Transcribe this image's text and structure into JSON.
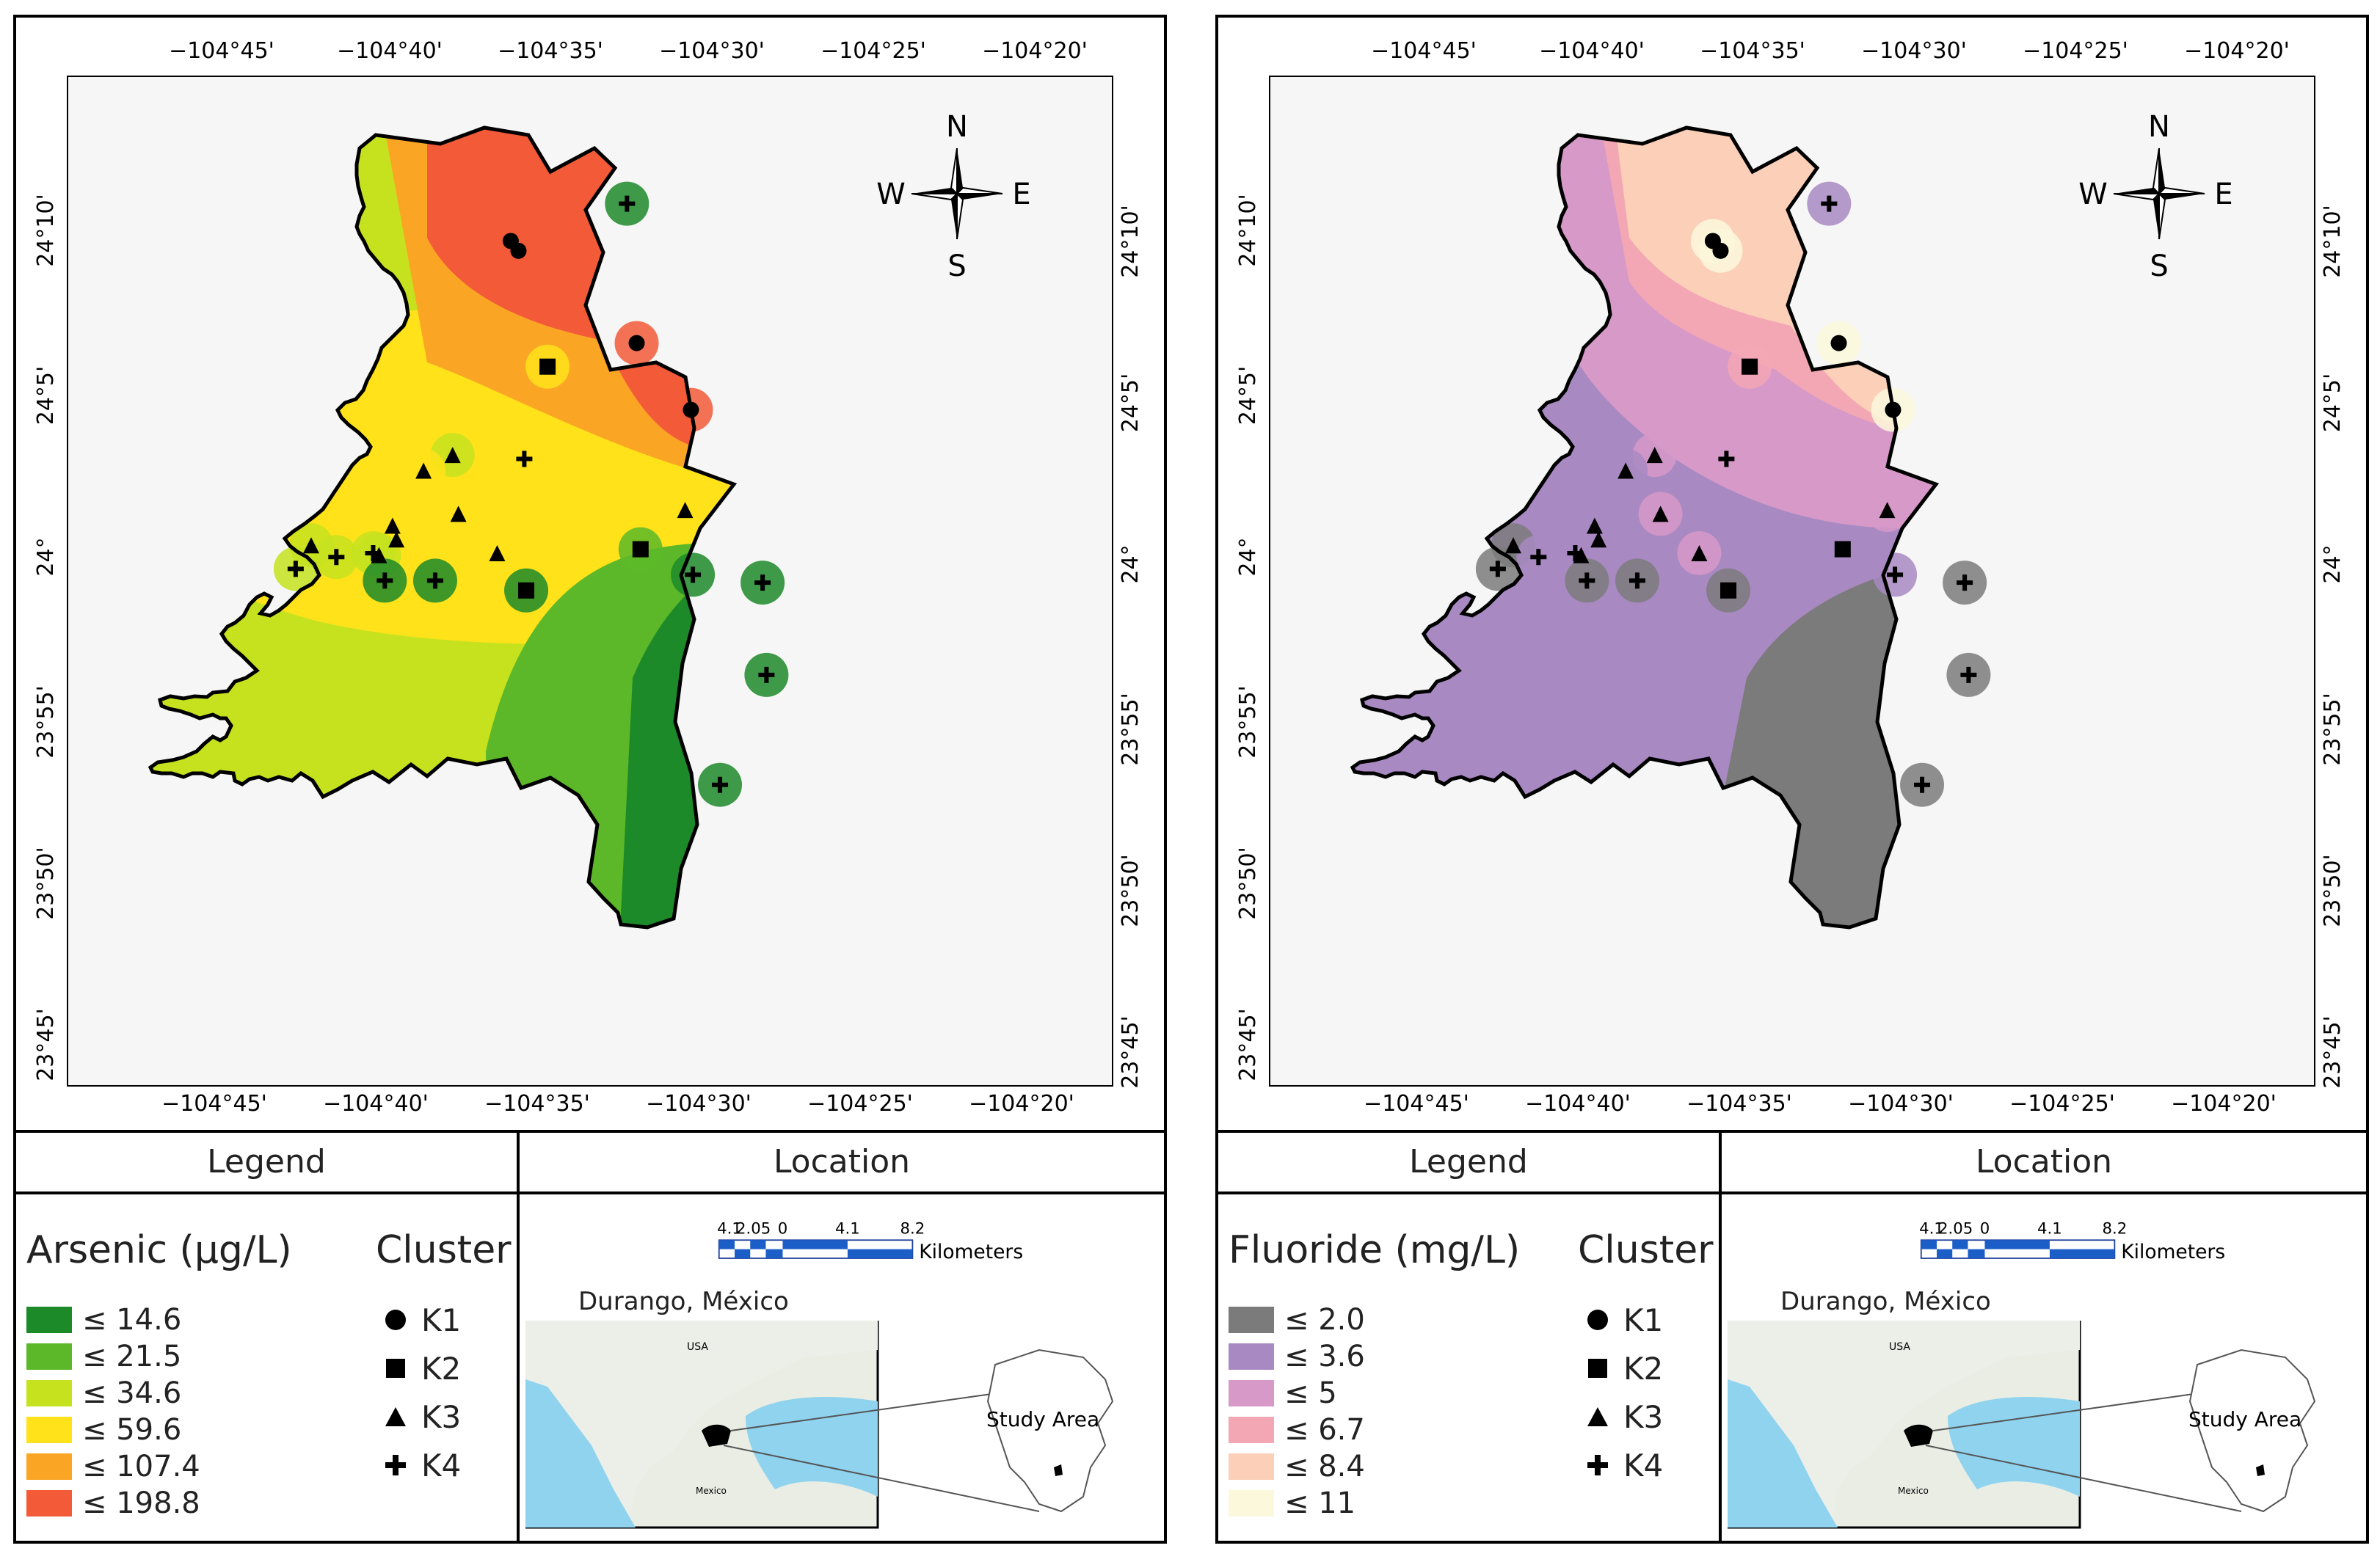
{
  "panels": [
    {
      "variable_label": "Arsenic (µg/L)",
      "legend_header": "Legend",
      "location_header": "Location",
      "cluster_title": "Cluster",
      "classes": [
        {
          "label": "≤ 14.6",
          "color": "#1d8a2a"
        },
        {
          "label": "≤ 21.5",
          "color": "#5cb828"
        },
        {
          "label": "≤ 34.6",
          "color": "#c6e21e"
        },
        {
          "label": "≤ 59.6",
          "color": "#ffe21a"
        },
        {
          "label": "≤ 107.4",
          "color": "#fba525"
        },
        {
          "label": "≤ 198.8",
          "color": "#f25a38"
        }
      ]
    },
    {
      "variable_label": "Fluoride (mg/L)",
      "legend_header": "Legend",
      "location_header": "Location",
      "cluster_title": "Cluster",
      "classes": [
        {
          "label": "≤ 2.0",
          "color": "#7b7b7b"
        },
        {
          "label": "≤ 3.6",
          "color": "#a889c2"
        },
        {
          "label": "≤ 5",
          "color": "#d699c8"
        },
        {
          "label": "≤ 6.7",
          "color": "#f3a7b4"
        },
        {
          "label": "≤ 8.4",
          "color": "#fbcfb8"
        },
        {
          "label": "≤ 11",
          "color": "#fbf8dc"
        }
      ]
    }
  ],
  "clusters": [
    {
      "label": "K1",
      "symbol": "circle"
    },
    {
      "label": "K2",
      "symbol": "square"
    },
    {
      "label": "K3",
      "symbol": "triangle"
    },
    {
      "label": "K4",
      "symbol": "cross"
    }
  ],
  "longitude_ticks": [
    "−104°45'",
    "−104°40'",
    "−104°35'",
    "−104°30'",
    "−104°25'",
    "−104°20'"
  ],
  "latitude_ticks": [
    "24°10'",
    "24°5'",
    "24°",
    "23°55'",
    "23°50'",
    "23°45'"
  ],
  "compass": {
    "n": "N",
    "s": "S",
    "e": "E",
    "w": "W"
  },
  "scale": {
    "ticks": [
      "4.1",
      "2.05",
      "0",
      "4.1",
      "8.2"
    ],
    "unit": "Kilometers"
  },
  "inset": {
    "title": "Durango, México",
    "study_area_label": "Study Area",
    "country_label": "USA",
    "mexico_label": "Mexico"
  },
  "sample_points": [
    {
      "cluster": "K1",
      "lon": -104.597,
      "lat": 24.165,
      "arsenic_class": 5,
      "fluoride_class": 5
    },
    {
      "cluster": "K1",
      "lon": -104.593,
      "lat": 24.16,
      "arsenic_class": 5,
      "fluoride_class": 5
    },
    {
      "cluster": "K1",
      "lon": -104.532,
      "lat": 24.113,
      "arsenic_class": 5,
      "fluoride_class": 5
    },
    {
      "cluster": "K1",
      "lon": -104.504,
      "lat": 24.079,
      "arsenic_class": 5,
      "fluoride_class": 5
    },
    {
      "cluster": "K2",
      "lon": -104.578,
      "lat": 24.101,
      "arsenic_class": 3,
      "fluoride_class": 3
    },
    {
      "cluster": "K2",
      "lon": -104.53,
      "lat": 24.008,
      "arsenic_class": 1,
      "fluoride_class": 1
    },
    {
      "cluster": "K2",
      "lon": -104.589,
      "lat": 23.987,
      "arsenic_class": 0,
      "fluoride_class": 0
    },
    {
      "cluster": "K3",
      "lon": -104.627,
      "lat": 24.056,
      "arsenic_class": 2,
      "fluoride_class": 2
    },
    {
      "cluster": "K3",
      "lon": -104.642,
      "lat": 24.048,
      "arsenic_class": 3,
      "fluoride_class": 1
    },
    {
      "cluster": "K3",
      "lon": -104.624,
      "lat": 24.026,
      "arsenic_class": 3,
      "fluoride_class": 2
    },
    {
      "cluster": "K3",
      "lon": -104.658,
      "lat": 24.02,
      "arsenic_class": 3,
      "fluoride_class": 1
    },
    {
      "cluster": "K3",
      "lon": -104.656,
      "lat": 24.013,
      "arsenic_class": 3,
      "fluoride_class": 1
    },
    {
      "cluster": "K3",
      "lon": -104.507,
      "lat": 24.028,
      "arsenic_class": 3,
      "fluoride_class": 2
    },
    {
      "cluster": "K3",
      "lon": -104.604,
      "lat": 24.006,
      "arsenic_class": 3,
      "fluoride_class": 2
    },
    {
      "cluster": "K3",
      "lon": -104.7,
      "lat": 24.01,
      "arsenic_class": 2,
      "fluoride_class": 0
    },
    {
      "cluster": "K3",
      "lon": -104.665,
      "lat": 24.005,
      "arsenic_class": 2,
      "fluoride_class": 1
    },
    {
      "cluster": "K4",
      "lon": -104.537,
      "lat": 24.184,
      "arsenic_class": 0,
      "fluoride_class": 1
    },
    {
      "cluster": "K4",
      "lon": -104.59,
      "lat": 24.054,
      "arsenic_class": 3,
      "fluoride_class": 2
    },
    {
      "cluster": "K4",
      "lon": -104.708,
      "lat": 23.998,
      "arsenic_class": 2,
      "fluoride_class": 0
    },
    {
      "cluster": "K4",
      "lon": -104.687,
      "lat": 24.004,
      "arsenic_class": 2,
      "fluoride_class": 1
    },
    {
      "cluster": "K4",
      "lon": -104.668,
      "lat": 24.006,
      "arsenic_class": 2,
      "fluoride_class": 1
    },
    {
      "cluster": "K4",
      "lon": -104.662,
      "lat": 23.992,
      "arsenic_class": 0,
      "fluoride_class": 0
    },
    {
      "cluster": "K4",
      "lon": -104.636,
      "lat": 23.992,
      "arsenic_class": 0,
      "fluoride_class": 0
    },
    {
      "cluster": "K4",
      "lon": -104.503,
      "lat": 23.995,
      "arsenic_class": 0,
      "fluoride_class": 1
    },
    {
      "cluster": "K4",
      "lon": -104.467,
      "lat": 23.991,
      "arsenic_class": 0,
      "fluoride_class": 0
    },
    {
      "cluster": "K4",
      "lon": -104.465,
      "lat": 23.944,
      "arsenic_class": 0,
      "fluoride_class": 0
    },
    {
      "cluster": "K4",
      "lon": -104.489,
      "lat": 23.888,
      "arsenic_class": 0,
      "fluoride_class": 0
    }
  ]
}
